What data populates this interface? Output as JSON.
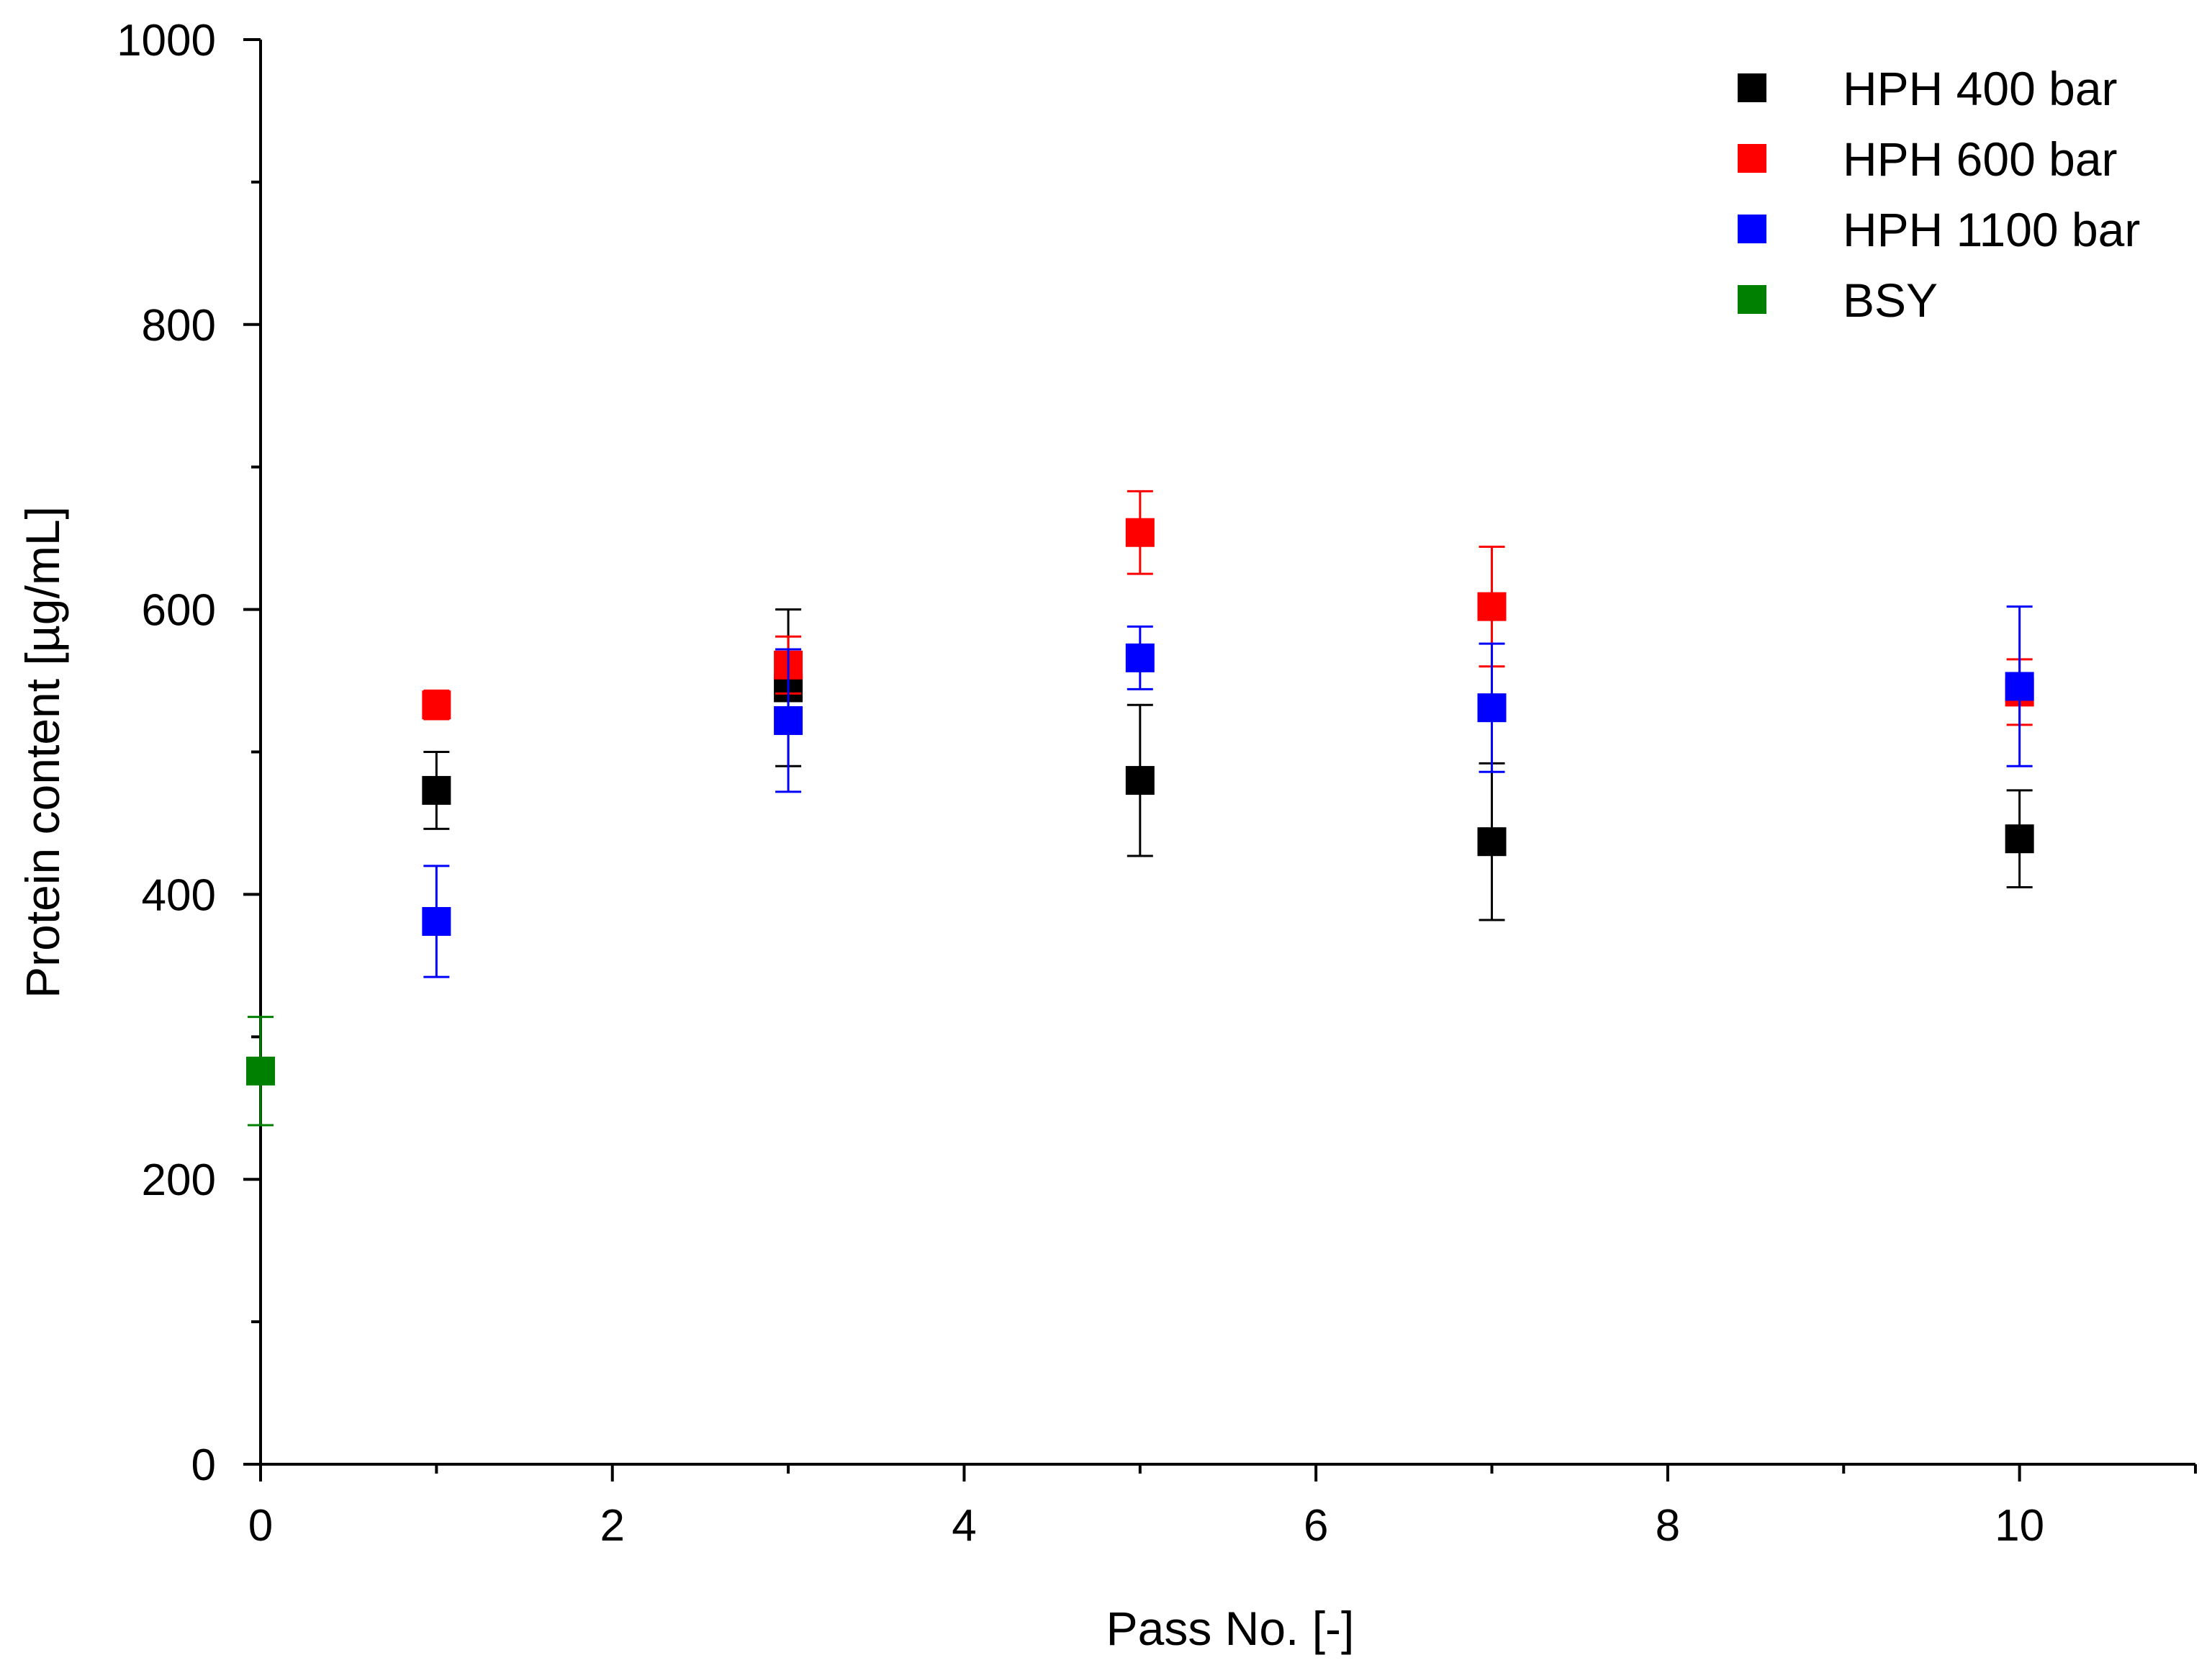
{
  "chart_data": {
    "type": "scatter",
    "title": "",
    "xlabel": "Pass No. [-]",
    "ylabel": "Protein content [µg/mL]",
    "xlim": [
      0,
      11
    ],
    "ylim": [
      0,
      1000
    ],
    "x_ticks": [
      0,
      2,
      4,
      6,
      8,
      10
    ],
    "x_tick_labels": [
      "0",
      "2",
      "4",
      "6",
      "8",
      "10"
    ],
    "y_ticks": [
      0,
      200,
      400,
      600,
      800,
      1000
    ],
    "y_tick_labels": [
      "0",
      "200",
      "400",
      "600",
      "800",
      "1000"
    ],
    "grid": false,
    "legend_position": "top-right",
    "series": [
      {
        "name": "HPH 400 bar",
        "color": "#000000",
        "x": [
          1,
          3,
          5,
          7,
          10
        ],
        "y": [
          473,
          545,
          480,
          437,
          439
        ],
        "err": [
          27,
          55,
          53,
          55,
          34
        ]
      },
      {
        "name": "HPH 600 bar",
        "color": "#ff0000",
        "x": [
          1,
          3,
          5,
          7,
          10
        ],
        "y": [
          533,
          561,
          654,
          602,
          542
        ],
        "err": [
          10,
          20,
          29,
          42,
          23
        ]
      },
      {
        "name": "HPH 1100 bar",
        "color": "#0000ff",
        "x": [
          1,
          3,
          5,
          7,
          10
        ],
        "y": [
          381,
          522,
          566,
          531,
          546
        ],
        "err": [
          39,
          50,
          22,
          45,
          56
        ]
      },
      {
        "name": "BSY",
        "color": "#008000",
        "x": [
          0
        ],
        "y": [
          276
        ],
        "err": [
          38
        ]
      }
    ]
  }
}
